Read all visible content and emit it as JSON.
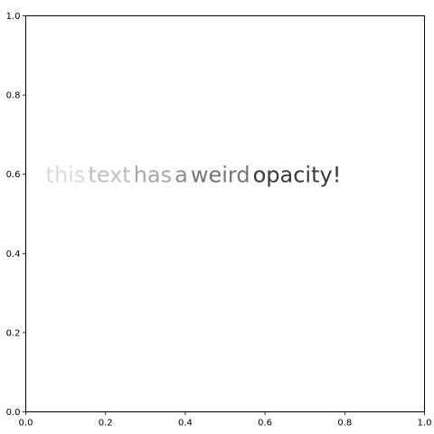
{
  "chart_data": {
    "type": "text",
    "title": "",
    "xlabel": "",
    "ylabel": "",
    "xlim": [
      0,
      1
    ],
    "ylim": [
      0,
      1
    ],
    "grid": false,
    "x_ticks": [
      "0.0",
      "0.2",
      "0.4",
      "0.6",
      "0.8",
      "1.0"
    ],
    "y_ticks": [
      "0.0",
      "0.2",
      "0.4",
      "0.6",
      "0.8",
      "1.0"
    ],
    "annotation": {
      "x": 0.05,
      "y": 0.6,
      "color": "#000000",
      "words": [
        {
          "text": "this",
          "opacity": 0.15
        },
        {
          "text": "text",
          "opacity": 0.25
        },
        {
          "text": "has",
          "opacity": 0.35
        },
        {
          "text": "a",
          "opacity": 0.45
        },
        {
          "text": "weird",
          "opacity": 0.55
        },
        {
          "text": "opacity!",
          "opacity": 0.78
        }
      ]
    }
  }
}
